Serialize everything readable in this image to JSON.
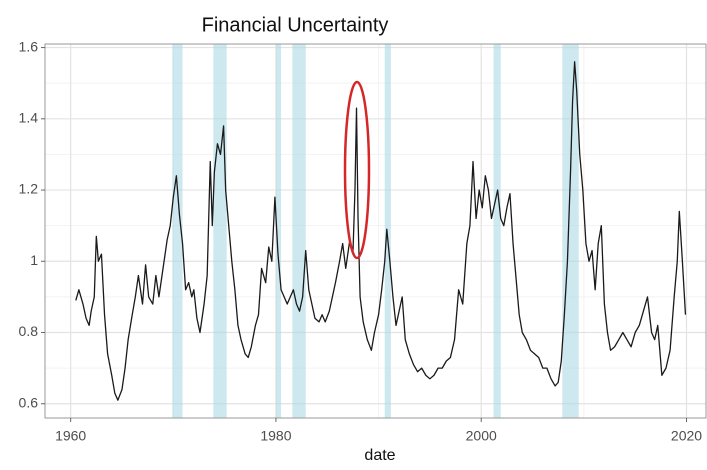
{
  "chart_data": {
    "type": "line",
    "title": "Financial Uncertainty",
    "x_label": "date",
    "color": "#1a1a1a",
    "band_color": "#add8e6",
    "grid": true,
    "xlim": [
      1957.5,
      2021.9
    ],
    "ylim": [
      0.56,
      1.61
    ],
    "xticks": [
      1960,
      1980,
      2000,
      2020
    ],
    "yticks": [
      0.6,
      0.8,
      1.0,
      1.2,
      1.4,
      1.6
    ],
    "x_minor_ticks": [
      1970,
      1990,
      2010
    ],
    "y_minor_ticks": [
      0.7,
      0.9,
      1.1,
      1.3,
      1.5
    ],
    "recessions": [
      [
        1969.9,
        1970.9
      ],
      [
        1973.9,
        1975.2
      ],
      [
        1980.0,
        1980.5
      ],
      [
        1981.6,
        1982.9
      ],
      [
        1990.6,
        1991.2
      ],
      [
        2001.2,
        2001.9
      ],
      [
        2007.9,
        2009.5
      ]
    ],
    "x": [
      1960.5,
      1960.8,
      1961.2,
      1961.5,
      1961.8,
      1962.0,
      1962.3,
      1962.5,
      1962.7,
      1963.0,
      1963.3,
      1963.6,
      1964.0,
      1964.3,
      1964.6,
      1965.0,
      1965.3,
      1965.6,
      1966.0,
      1966.3,
      1966.6,
      1967.0,
      1967.3,
      1967.6,
      1968.0,
      1968.3,
      1968.6,
      1969.0,
      1969.4,
      1969.7,
      1970.0,
      1970.3,
      1970.6,
      1970.9,
      1971.2,
      1971.5,
      1971.8,
      1972.0,
      1972.3,
      1972.6,
      1973.0,
      1973.3,
      1973.6,
      1973.8,
      1974.0,
      1974.3,
      1974.6,
      1974.9,
      1975.1,
      1975.4,
      1975.7,
      1976.0,
      1976.3,
      1976.6,
      1977.0,
      1977.3,
      1977.6,
      1978.0,
      1978.3,
      1978.6,
      1979.0,
      1979.3,
      1979.6,
      1979.9,
      1980.2,
      1980.5,
      1980.8,
      1981.1,
      1981.4,
      1981.7,
      1982.0,
      1982.3,
      1982.6,
      1982.9,
      1983.2,
      1983.5,
      1983.8,
      1984.2,
      1984.5,
      1984.8,
      1985.2,
      1985.5,
      1985.8,
      1986.2,
      1986.5,
      1986.8,
      1987.2,
      1987.5,
      1987.7,
      1987.85,
      1988.0,
      1988.2,
      1988.5,
      1988.9,
      1989.3,
      1989.6,
      1990.0,
      1990.3,
      1990.6,
      1990.8,
      1991.1,
      1991.4,
      1991.7,
      1992.0,
      1992.3,
      1992.6,
      1993.0,
      1993.4,
      1993.8,
      1994.2,
      1994.6,
      1995.0,
      1995.4,
      1995.8,
      1996.2,
      1996.6,
      1997.0,
      1997.4,
      1997.8,
      1998.2,
      1998.6,
      1998.9,
      1999.2,
      1999.5,
      1999.8,
      2000.1,
      2000.4,
      2000.7,
      2001.0,
      2001.3,
      2001.6,
      2001.9,
      2002.2,
      2002.5,
      2002.8,
      2003.1,
      2003.4,
      2003.7,
      2004.0,
      2004.4,
      2004.8,
      2005.2,
      2005.6,
      2006.0,
      2006.4,
      2006.8,
      2007.2,
      2007.5,
      2007.8,
      2008.1,
      2008.4,
      2008.7,
      2008.9,
      2009.1,
      2009.3,
      2009.6,
      2009.9,
      2010.2,
      2010.5,
      2010.8,
      2011.1,
      2011.4,
      2011.7,
      2012.0,
      2012.3,
      2012.6,
      2013.0,
      2013.4,
      2013.8,
      2014.2,
      2014.6,
      2015.0,
      2015.4,
      2015.8,
      2016.2,
      2016.6,
      2016.9,
      2017.2,
      2017.6,
      2018.0,
      2018.4,
      2018.8,
      2019.1,
      2019.3,
      2019.6,
      2019.9
    ],
    "values": [
      0.89,
      0.92,
      0.88,
      0.84,
      0.82,
      0.86,
      0.9,
      1.07,
      1.0,
      1.02,
      0.85,
      0.74,
      0.68,
      0.63,
      0.61,
      0.64,
      0.7,
      0.78,
      0.85,
      0.9,
      0.96,
      0.88,
      0.99,
      0.9,
      0.88,
      0.96,
      0.9,
      0.98,
      1.06,
      1.1,
      1.18,
      1.24,
      1.13,
      1.05,
      0.92,
      0.94,
      0.9,
      0.92,
      0.84,
      0.8,
      0.88,
      0.96,
      1.28,
      1.1,
      1.25,
      1.33,
      1.3,
      1.38,
      1.2,
      1.1,
      1.0,
      0.92,
      0.82,
      0.78,
      0.74,
      0.73,
      0.76,
      0.82,
      0.85,
      0.98,
      0.94,
      1.04,
      1.0,
      1.18,
      1.02,
      0.92,
      0.9,
      0.88,
      0.9,
      0.92,
      0.88,
      0.86,
      0.9,
      1.03,
      0.92,
      0.88,
      0.84,
      0.83,
      0.85,
      0.83,
      0.86,
      0.9,
      0.94,
      1.0,
      1.05,
      0.98,
      1.06,
      1.02,
      1.2,
      1.43,
      1.12,
      0.9,
      0.83,
      0.78,
      0.75,
      0.8,
      0.85,
      0.92,
      1.0,
      1.09,
      1.0,
      0.9,
      0.82,
      0.86,
      0.9,
      0.78,
      0.74,
      0.71,
      0.69,
      0.7,
      0.68,
      0.67,
      0.68,
      0.7,
      0.7,
      0.72,
      0.73,
      0.78,
      0.92,
      0.88,
      1.05,
      1.1,
      1.28,
      1.12,
      1.2,
      1.15,
      1.24,
      1.2,
      1.12,
      1.16,
      1.2,
      1.12,
      1.1,
      1.15,
      1.19,
      1.05,
      0.95,
      0.85,
      0.8,
      0.78,
      0.75,
      0.74,
      0.73,
      0.7,
      0.7,
      0.67,
      0.65,
      0.66,
      0.72,
      0.85,
      1.0,
      1.25,
      1.45,
      1.56,
      1.48,
      1.3,
      1.2,
      1.05,
      1.0,
      1.03,
      0.92,
      1.05,
      1.1,
      0.88,
      0.8,
      0.75,
      0.76,
      0.78,
      0.8,
      0.78,
      0.76,
      0.8,
      0.82,
      0.86,
      0.9,
      0.8,
      0.78,
      0.82,
      0.68,
      0.7,
      0.75,
      0.9,
      1.0,
      1.14,
      1.0,
      0.85
    ]
  }
}
